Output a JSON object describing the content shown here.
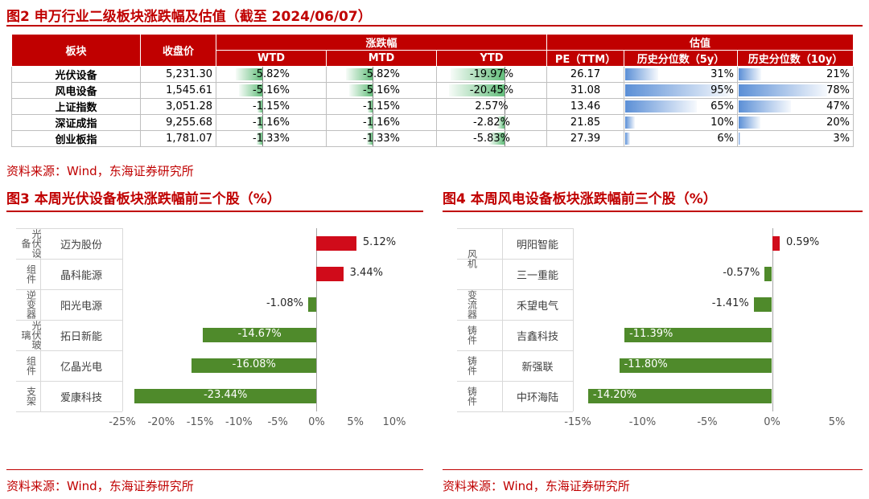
{
  "fig2": {
    "title": "图2 申万行业二级板块涨跌幅及估值（截至 2024/06/07）",
    "headers": {
      "sector": "板块",
      "close": "收盘价",
      "change": "涨跌幅",
      "valuation": "估值",
      "wtd": "WTD",
      "mtd": "MTD",
      "ytd": "YTD",
      "pe": "PE（TTM）",
      "pct5": "历史分位数（5y）",
      "pct10": "历史分位数（10y）"
    },
    "rows": [
      {
        "name": "光伏设备",
        "close": "5,231.30",
        "wtd": "-5.82%",
        "mtd": "-5.82%",
        "ytd": "-19.97%",
        "pe": "26.17",
        "pct5": "31%",
        "pct10": "21%"
      },
      {
        "name": "风电设备",
        "close": "1,545.61",
        "wtd": "-5.16%",
        "mtd": "-5.16%",
        "ytd": "-20.45%",
        "pe": "31.08",
        "pct5": "95%",
        "pct10": "78%"
      },
      {
        "name": "上证指数",
        "close": "3,051.28",
        "wtd": "-1.15%",
        "mtd": "-1.15%",
        "ytd": "2.57%",
        "pe": "13.46",
        "pct5": "65%",
        "pct10": "47%"
      },
      {
        "name": "深证成指",
        "close": "9,255.68",
        "wtd": "-1.16%",
        "mtd": "-1.16%",
        "ytd": "-2.82%",
        "pe": "21.85",
        "pct5": "10%",
        "pct10": "20%"
      },
      {
        "name": "创业板指",
        "close": "1,781.07",
        "wtd": "-1.33%",
        "mtd": "-1.33%",
        "ytd": "-5.83%",
        "pe": "27.39",
        "pct5": "6%",
        "pct10": "3%"
      }
    ],
    "source": "资料来源：Wind，东海证券研究所"
  },
  "fig3": {
    "title": "图3 本周光伏设备板块涨跌幅前三个股（%）",
    "source": "资料来源：Wind，东海证券研究所"
  },
  "fig4": {
    "title": "图4 本周风电设备板块涨跌幅前三个股（%）",
    "source": "资料来源：Wind，东海证券研究所"
  },
  "chart_data": [
    {
      "type": "bar",
      "orientation": "horizontal",
      "title": "本周光伏设备板块涨跌幅前三个股（%）",
      "groups": [
        {
          "label": "光伏设备",
          "items": [
            "迈为股份"
          ]
        },
        {
          "label": "组件",
          "items": [
            "晶科能源"
          ]
        },
        {
          "label": "逆变器",
          "items": [
            "阳光电源"
          ]
        },
        {
          "label": "光伏玻璃",
          "items": [
            "拓日新能"
          ]
        },
        {
          "label": "组件",
          "items": [
            "亿晶光电"
          ]
        },
        {
          "label": "支架",
          "items": [
            "爱康科技"
          ]
        }
      ],
      "categories": [
        "迈为股份",
        "晶科能源",
        "阳光电源",
        "拓日新能",
        "亿晶光电",
        "爱康科技"
      ],
      "values": [
        5.12,
        3.44,
        -1.08,
        -14.67,
        -16.08,
        -23.44
      ],
      "value_labels": [
        "5.12%",
        "3.44%",
        "-1.08%",
        "-14.67%",
        "-16.08%",
        "-23.44%"
      ],
      "xlim": [
        -25,
        10
      ],
      "xticks": [
        -25,
        -20,
        -15,
        -10,
        -5,
        0,
        5,
        10
      ],
      "xtick_labels": [
        "-25%",
        "-20%",
        "-15%",
        "-10%",
        "-5%",
        "0%",
        "5%",
        "10%"
      ],
      "colors": {
        "positive": "#d00b1a",
        "negative": "#4f8a2b"
      }
    },
    {
      "type": "bar",
      "orientation": "horizontal",
      "title": "本周风电设备板块涨跌幅前三个股（%）",
      "groups": [
        {
          "label": "风机",
          "items": [
            "明阳智能",
            "三一重能"
          ]
        },
        {
          "label": "变流器",
          "items": [
            "禾望电气"
          ]
        },
        {
          "label": "铸件",
          "items": [
            "吉鑫科技"
          ]
        },
        {
          "label": "铸件",
          "items": [
            "新强联"
          ]
        },
        {
          "label": "铸件",
          "items": [
            "中环海陆"
          ]
        }
      ],
      "categories": [
        "明阳智能",
        "三一重能",
        "禾望电气",
        "吉鑫科技",
        "新强联",
        "中环海陆"
      ],
      "values": [
        0.59,
        -0.57,
        -1.41,
        -11.39,
        -11.8,
        -14.2
      ],
      "value_labels": [
        "0.59%",
        "-0.57%",
        "-1.41%",
        "-11.39%",
        "-11.80%",
        "-14.20%"
      ],
      "xlim": [
        -15,
        5
      ],
      "xticks": [
        -15,
        -10,
        -5,
        0,
        5
      ],
      "xtick_labels": [
        "-15%",
        "-10%",
        "-5%",
        "0%",
        "5%"
      ],
      "colors": {
        "positive": "#d00b1a",
        "negative": "#4f8a2b"
      }
    }
  ]
}
